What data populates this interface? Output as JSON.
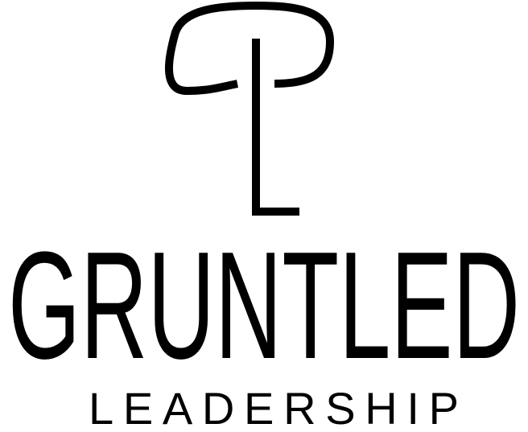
{
  "logo": {
    "monogram": "GL",
    "name": "GRUNTLED",
    "tagline": "LEADERSHIP",
    "color": "#000000",
    "background": "#ffffff"
  }
}
